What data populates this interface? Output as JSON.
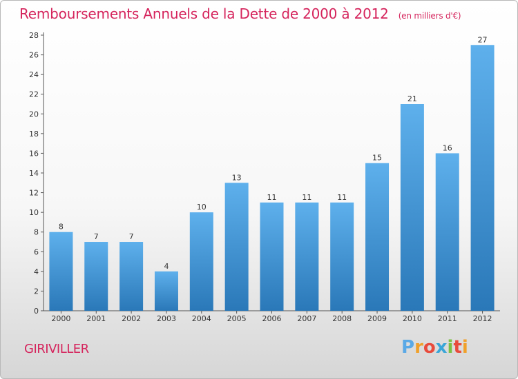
{
  "header": {
    "title": "Remboursements Annuels de la Dette de 2000 à 2012",
    "unit": "(en milliers d'€)"
  },
  "footer": {
    "commune": "GIRIVILLER",
    "logo_letters": [
      "P",
      "r",
      "o",
      "x",
      "i",
      "t",
      "i"
    ],
    "logo_colors": [
      "#5aa9e6",
      "#f0a02a",
      "#e84b3c",
      "#3aa6d8",
      "#7bc043",
      "#e84b3c",
      "#f0a02a"
    ]
  },
  "chart_data": {
    "type": "bar",
    "title": "Remboursements Annuels de la Dette de 2000 à 2012",
    "subtitle": "(en milliers d'€)",
    "categories": [
      "2000",
      "2001",
      "2002",
      "2003",
      "2004",
      "2005",
      "2006",
      "2007",
      "2008",
      "2009",
      "2010",
      "2011",
      "2012"
    ],
    "values": [
      8,
      7,
      7,
      4,
      10,
      13,
      11,
      11,
      11,
      15,
      21,
      16,
      27
    ],
    "ylim": [
      0,
      28
    ],
    "yticks": [
      0,
      2,
      4,
      6,
      8,
      10,
      12,
      14,
      16,
      18,
      20,
      22,
      24,
      26,
      28
    ],
    "grid": false,
    "colors": {
      "bar_top": "#5eb0ec",
      "bar_bottom": "#2a78b8",
      "axis": "#555555",
      "text": "#333333"
    }
  }
}
